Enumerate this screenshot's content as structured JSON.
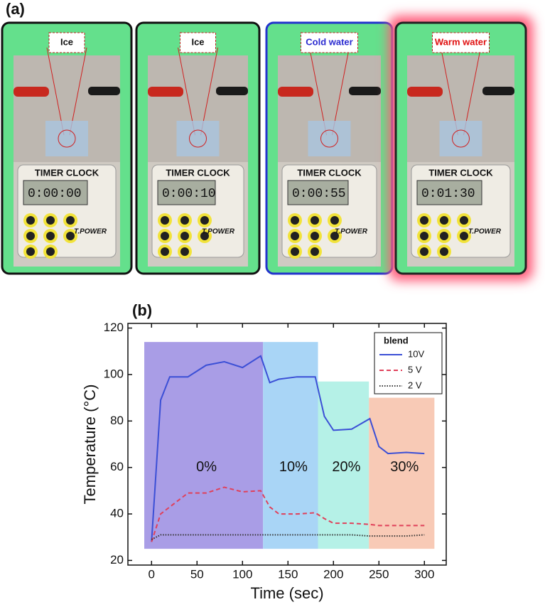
{
  "panel_a": {
    "label": "(a)",
    "photos": [
      {
        "tag": "Ice",
        "timer_title": "TIMER CLOCK",
        "time": "0:00:00",
        "brand": "T.POWER"
      },
      {
        "tag": "Ice",
        "timer_title": "TIMER CLOCK",
        "time": "0:00:10",
        "brand": "T.POWER"
      },
      {
        "tag": "Cold water",
        "timer_title": "TIMER CLOCK",
        "time": "0:00:55",
        "brand": "T.POWER"
      },
      {
        "tag": "Warm water",
        "timer_title": "TIMER CLOCK",
        "time": "0:01:30",
        "brand": "T.POWER"
      }
    ]
  },
  "chart_data": {
    "type": "line",
    "panel_label": "(b)",
    "x_label": "Time (sec)",
    "y_label": "Temperature (°C)",
    "xlim": [
      -26,
      324
    ],
    "ylim": [
      18,
      122
    ],
    "xticks": [
      0,
      50,
      100,
      150,
      200,
      250,
      300
    ],
    "yticks": [
      20,
      40,
      60,
      80,
      100,
      120
    ],
    "regions": [
      {
        "label": "0%",
        "x": [
          -8,
          122.6
        ],
        "y": [
          25,
          114
        ],
        "color": "#a99de6"
      },
      {
        "label": "10%",
        "x": [
          122.6,
          183
        ],
        "y": [
          25,
          114
        ],
        "color": "#a9d5f6"
      },
      {
        "label": "20%",
        "x": [
          183,
          239
        ],
        "y": [
          25,
          97
        ],
        "color": "#b5f1e7"
      },
      {
        "label": "30%",
        "x": [
          239,
          311
        ],
        "y": [
          25,
          90
        ],
        "color": "#f8cab6"
      }
    ],
    "x": [
      0,
      10,
      20,
      40,
      60,
      80,
      100,
      120,
      130,
      140,
      160,
      180,
      190,
      200,
      220,
      240,
      250,
      260,
      280,
      300
    ],
    "legend_title": "blend",
    "series": [
      {
        "name": "10V",
        "color": "#3b4fd6",
        "dash": "solid",
        "values": [
          28,
          89,
          99,
          99,
          104,
          105.5,
          103,
          108,
          96.5,
          98,
          99,
          99,
          82,
          76,
          76.5,
          81,
          69,
          66,
          66.5,
          66
        ]
      },
      {
        "name": "5 V",
        "color": "#e0405a",
        "dash": "dashed",
        "values": [
          28,
          40,
          43,
          49,
          49,
          51.5,
          49.5,
          50,
          43,
          40,
          40,
          40.5,
          38,
          36,
          36,
          35.5,
          35,
          35,
          35,
          35
        ]
      },
      {
        "name": "2 V",
        "color": "#333333",
        "dash": "dotted",
        "values": [
          29,
          31,
          31,
          31,
          31,
          31,
          31,
          31,
          31,
          31,
          31,
          31,
          31,
          31,
          31,
          30.5,
          30.5,
          30.5,
          30.5,
          31
        ]
      }
    ]
  }
}
